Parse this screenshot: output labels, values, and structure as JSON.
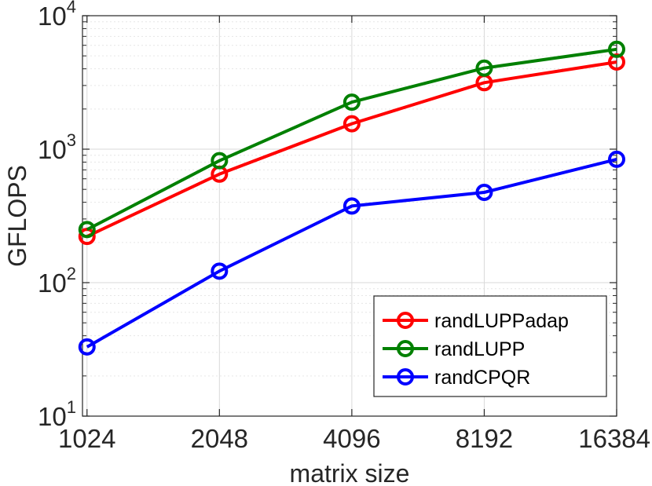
{
  "chart_data": {
    "type": "line",
    "title": "",
    "xlabel": "matrix size",
    "ylabel": "GFLOPS",
    "xscale": "log2",
    "yscale": "log10",
    "x": [
      1024,
      2048,
      4096,
      8192,
      16384
    ],
    "x_tick_labels": [
      "1024",
      "2048",
      "4096",
      "8192",
      "16384"
    ],
    "xlim": [
      1000,
      16384
    ],
    "ylim": [
      10,
      10000
    ],
    "y_ticks": [
      {
        "base": "10",
        "exp": "1"
      },
      {
        "base": "10",
        "exp": "2"
      },
      {
        "base": "10",
        "exp": "3"
      },
      {
        "base": "10",
        "exp": "4"
      }
    ],
    "grid": true,
    "legend_position": "bottom-right",
    "series": [
      {
        "name": "randLUPPadap",
        "color": "#ff0000",
        "marker": "circle-open",
        "values": [
          222,
          650,
          1550,
          3150,
          4500
        ]
      },
      {
        "name": "randLUPP",
        "color": "#008000",
        "marker": "circle-open",
        "values": [
          250,
          820,
          2250,
          4050,
          5600
        ]
      },
      {
        "name": "randCPQR",
        "color": "#0000ff",
        "marker": "circle-open",
        "values": [
          33,
          122,
          375,
          475,
          840
        ]
      }
    ]
  }
}
